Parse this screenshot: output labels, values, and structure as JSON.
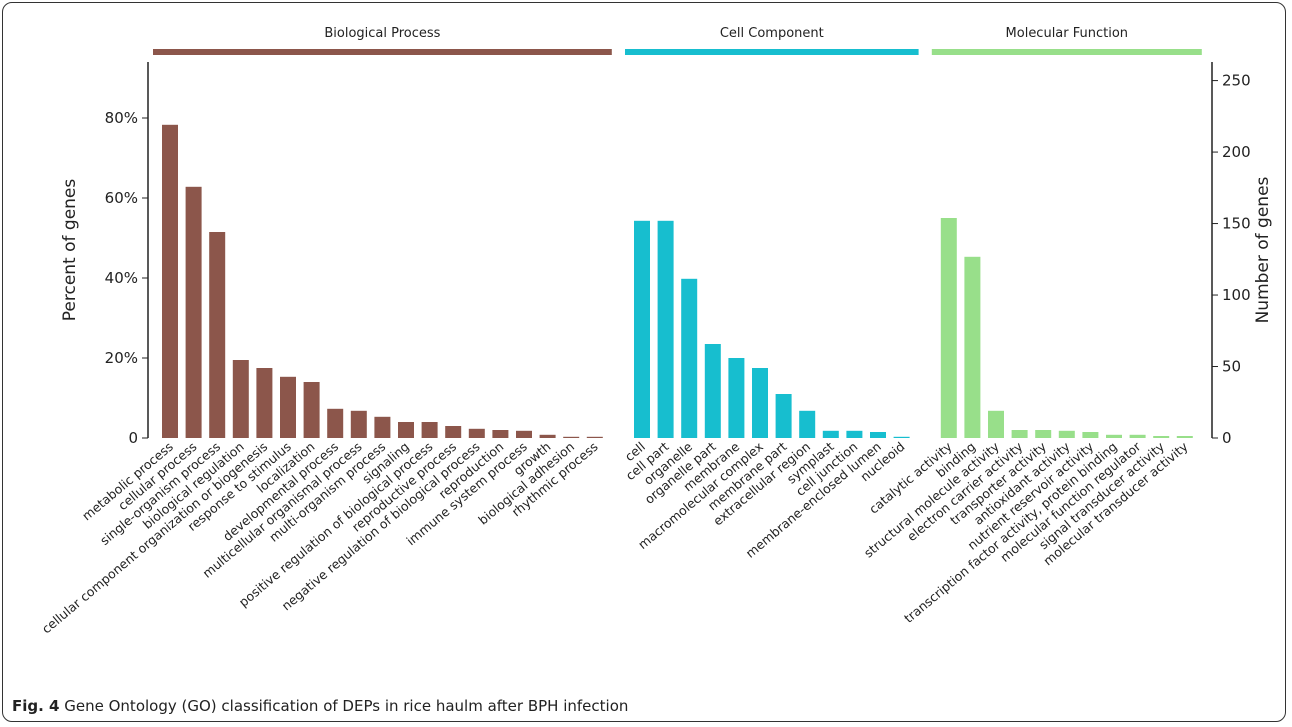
{
  "chart_data": {
    "type": "bar",
    "ylabel": "Percent of genes",
    "y2label": "Number of genes",
    "ylim": [
      0,
      94
    ],
    "yticks": [
      0,
      {
        "value": 20,
        "label": "20%"
      },
      {
        "value": 40,
        "label": "40%"
      },
      {
        "value": 60,
        "label": "60%"
      },
      {
        "value": 80,
        "label": "80%"
      }
    ],
    "y2lim": [
      0,
      263
    ],
    "y2ticks": [
      0,
      50,
      100,
      150,
      200,
      250
    ],
    "groups": [
      {
        "name": "Biological Process",
        "color": "#8c564b",
        "categories": [
          "metabolic process",
          "cellular process",
          "single-organism process",
          "biological regulation",
          "cellular component organization or biogenesis",
          "response to stimulus",
          "localization",
          "developmental process",
          "multicellular organismal process",
          "multi-organism process",
          "signaling",
          "positive regulation of biological process",
          "reproductive process",
          "negative regulation of biological process",
          "reproduction",
          "immune system process",
          "growth",
          "biological adhesion",
          "rhythmic process"
        ],
        "values": [
          78.3,
          62.8,
          51.5,
          19.5,
          17.5,
          15.3,
          14,
          7.3,
          6.8,
          5.3,
          4,
          4,
          3,
          2.3,
          2,
          1.8,
          0.8,
          0.3,
          0.3
        ]
      },
      {
        "name": "Cell Component",
        "color": "#17becf",
        "categories": [
          "cell",
          "cell part",
          "organelle",
          "organelle part",
          "membrane",
          "macromolecular complex",
          "membrane part",
          "extracellular region",
          "symplast",
          "cell junction",
          "membrane-enclosed lumen",
          "nucleoid"
        ],
        "values": [
          54.3,
          54.3,
          39.8,
          23.5,
          20,
          17.5,
          11,
          6.8,
          1.8,
          1.8,
          1.5,
          0.3
        ]
      },
      {
        "name": "Molecular Function",
        "color": "#98df8a",
        "categories": [
          "catalytic activity",
          "binding",
          "structural molecule activity",
          "electron carrier activity",
          "transporter activity",
          "antioxidant activity",
          "nutrient reservoir activity",
          "transcription factor activity, protein binding",
          "molecular function regulator",
          "signal transducer activity",
          "molecular transducer activity"
        ],
        "values": [
          55,
          45.3,
          6.8,
          2,
          2,
          1.8,
          1.5,
          0.8,
          0.8,
          0.5,
          0.5
        ]
      }
    ]
  },
  "caption": {
    "label": "Fig. 4",
    "text": "Gene Ontology (GO) classification of DEPs in rice haulm after BPH infection"
  }
}
